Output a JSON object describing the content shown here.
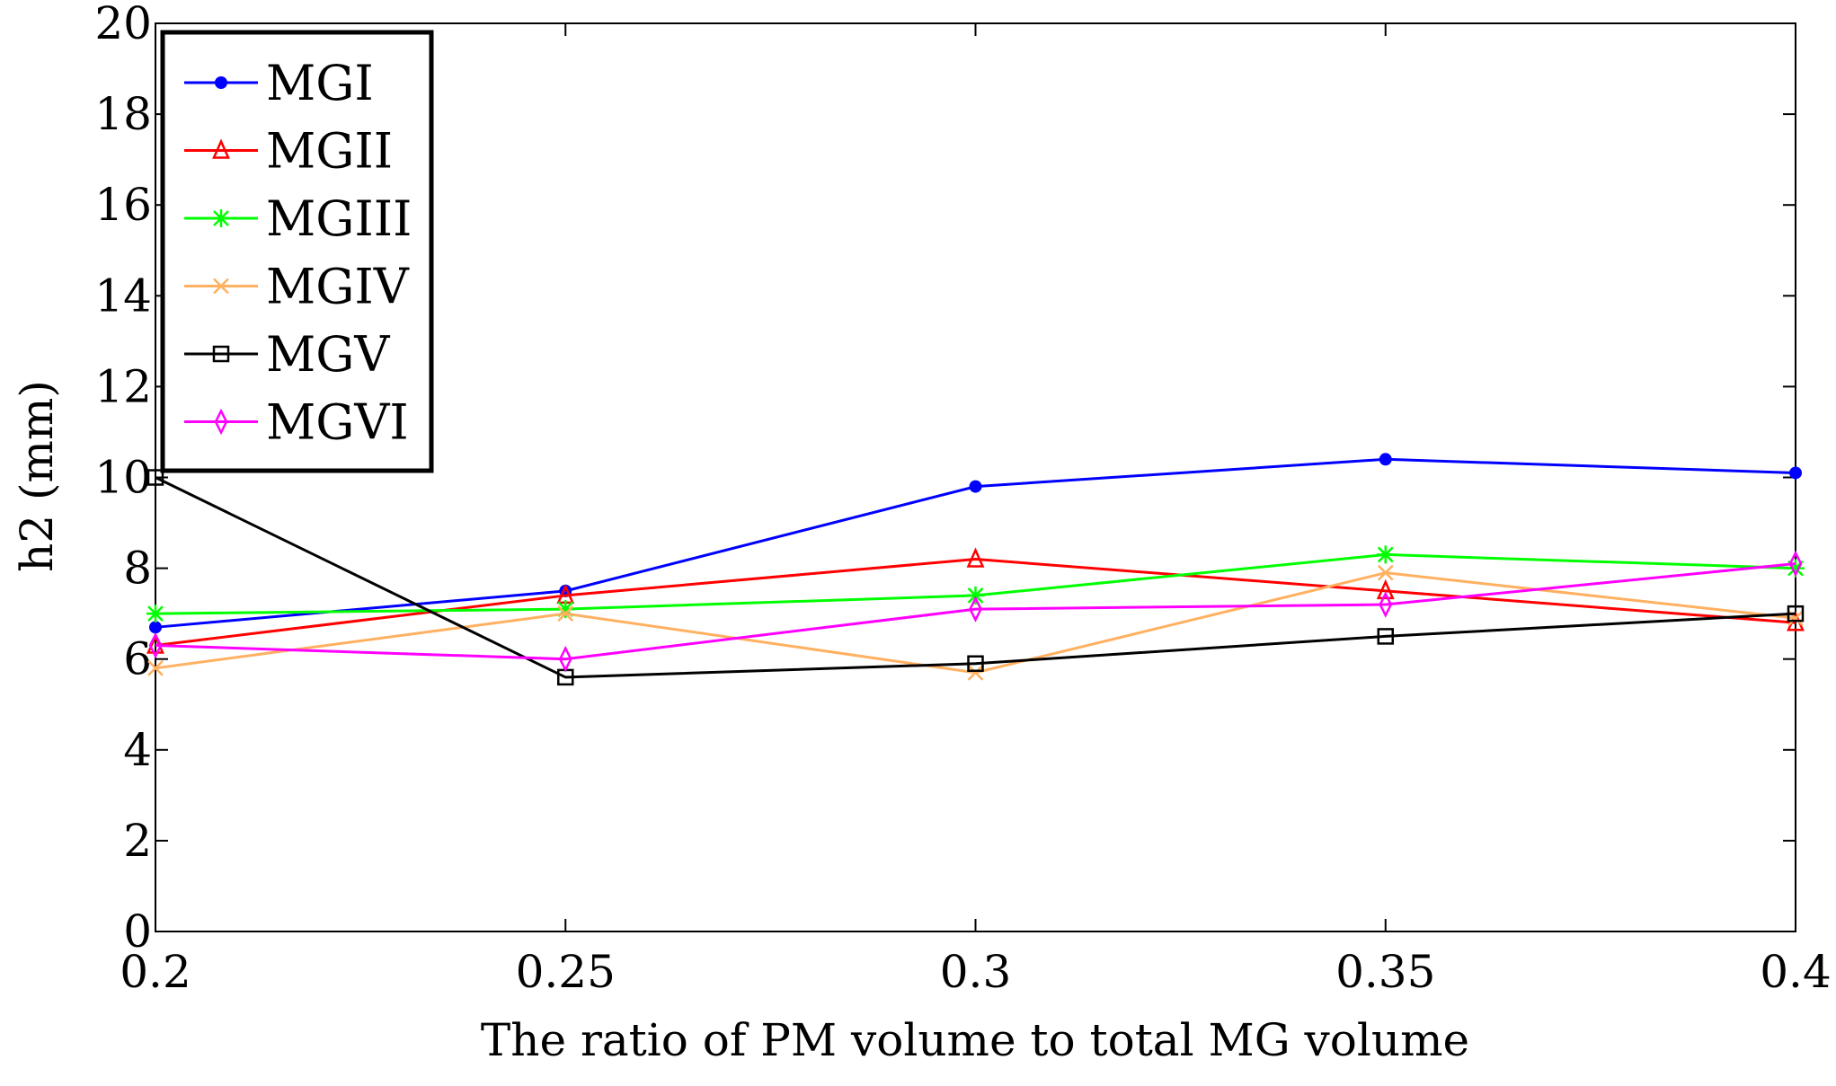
{
  "chart_data": {
    "type": "line",
    "title": "",
    "xlabel": "The ratio of PM volume to total MG volume",
    "ylabel": "h2 (mm)",
    "x": [
      0.2,
      0.25,
      0.3,
      0.35,
      0.4
    ],
    "xticks": [
      "0.2",
      "0.25",
      "0.3",
      "0.35",
      "0.4"
    ],
    "yticks": [
      "0",
      "2",
      "4",
      "6",
      "8",
      "10",
      "12",
      "14",
      "16",
      "18",
      "20"
    ],
    "xlim": [
      0.2,
      0.4
    ],
    "ylim": [
      0,
      20
    ],
    "grid": false,
    "legend_position": "top-left",
    "series": [
      {
        "name": "MGI",
        "color": "#0000ff",
        "marker": "dot",
        "values": [
          6.7,
          7.5,
          9.8,
          10.4,
          10.1
        ]
      },
      {
        "name": "MGII",
        "color": "#ff0000",
        "marker": "triangle",
        "values": [
          6.3,
          7.4,
          8.2,
          7.5,
          6.8
        ]
      },
      {
        "name": "MGIII",
        "color": "#00ff00",
        "marker": "asterisk",
        "values": [
          7.0,
          7.1,
          7.4,
          8.3,
          8.0
        ]
      },
      {
        "name": "MGIV",
        "color": "#ffb060",
        "marker": "cross",
        "values": [
          5.8,
          7.0,
          5.7,
          7.9,
          6.9
        ]
      },
      {
        "name": "MGV",
        "color": "#000000",
        "marker": "square",
        "values": [
          10.0,
          5.6,
          5.9,
          6.5,
          7.0
        ]
      },
      {
        "name": "MGVI",
        "color": "#ff00ff",
        "marker": "diamond",
        "values": [
          6.3,
          6.0,
          7.1,
          7.2,
          8.1
        ]
      }
    ]
  }
}
